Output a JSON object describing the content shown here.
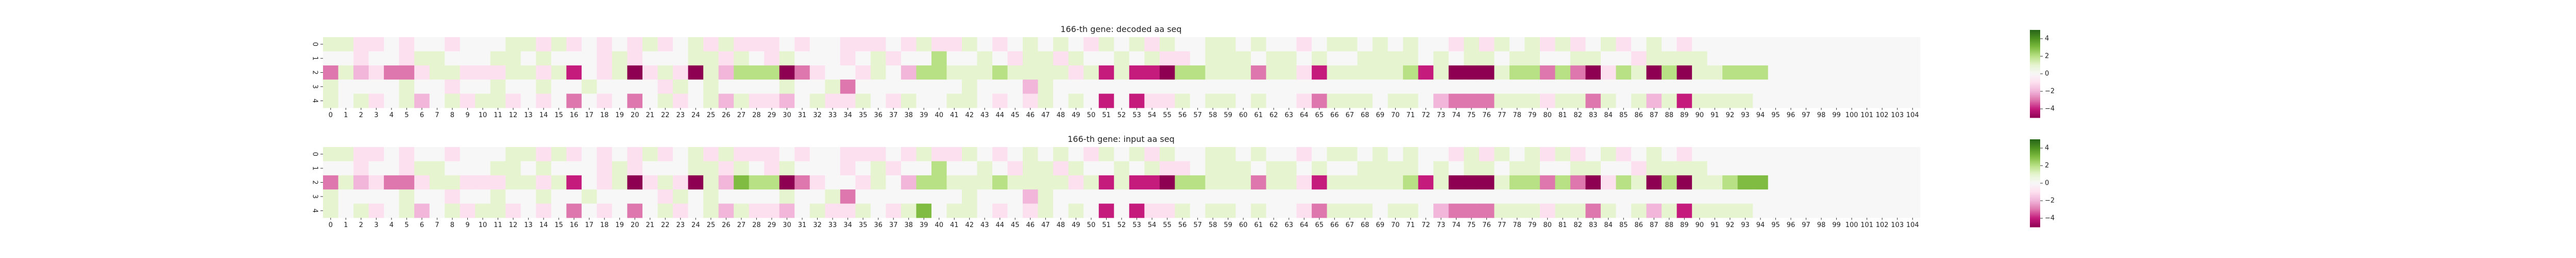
{
  "chart_data": [
    {
      "type": "heatmap",
      "title": "166-th gene: decoded aa seq",
      "n_cols": 105,
      "row_labels": [
        "0",
        "1",
        "2",
        "3",
        "4"
      ],
      "colorscale": "PiYG",
      "vmin": -5,
      "vmax": 5,
      "colorbar_ticks": [
        4,
        2,
        0,
        -2,
        -4
      ],
      "values": [
        [
          1,
          1,
          -1,
          -1,
          0,
          -1,
          0,
          0,
          -1,
          0,
          0,
          0,
          1,
          1,
          -1,
          1,
          -1,
          0,
          -1,
          0,
          -1,
          1,
          -1,
          0,
          1,
          -1,
          1,
          -1,
          -1,
          -1,
          0,
          -1,
          0,
          0,
          -1,
          -1,
          -1,
          0,
          -1,
          1,
          -1,
          -1,
          1,
          0,
          -1,
          0,
          1,
          0,
          1,
          0,
          -1,
          1,
          0,
          1,
          -1,
          1,
          0,
          0,
          1,
          1,
          0,
          1,
          0,
          0,
          -1,
          0,
          1,
          1,
          0,
          1,
          0,
          1,
          0,
          0,
          -1,
          1,
          -1,
          1,
          0,
          1,
          -1,
          1,
          -1,
          0,
          1,
          -1,
          0,
          1,
          0,
          -1,
          0,
          0,
          0,
          0,
          0,
          0,
          0,
          0,
          0,
          0,
          0,
          0,
          0,
          0,
          0
        ],
        [
          0,
          0,
          -1,
          0,
          0,
          -1,
          1,
          1,
          0,
          0,
          0,
          1,
          1,
          0,
          1,
          0,
          0,
          0,
          -1,
          1,
          -1,
          0,
          0,
          0,
          1,
          1,
          -1,
          1,
          0,
          -1,
          1,
          0,
          0,
          0,
          -1,
          0,
          1,
          -1,
          0,
          0,
          2,
          0,
          0,
          1,
          0,
          -1,
          1,
          1,
          -1,
          1,
          0,
          0,
          1,
          0,
          1,
          -1,
          -1,
          0,
          1,
          1,
          1,
          0,
          1,
          1,
          0,
          1,
          0,
          0,
          1,
          1,
          1,
          1,
          0,
          1,
          0,
          1,
          1,
          0,
          1,
          1,
          0,
          0,
          1,
          1,
          0,
          0,
          -1,
          1,
          1,
          1,
          1,
          0,
          0,
          0,
          0,
          0,
          0,
          0,
          0,
          0,
          0,
          0,
          0,
          0,
          0
        ],
        [
          -3,
          1,
          -2,
          -1,
          -3,
          -3,
          -1,
          1,
          1,
          -1,
          -1,
          -1,
          1,
          1,
          -1,
          1,
          -4,
          0,
          -1,
          1,
          -5,
          -1,
          1,
          -1,
          -5,
          1,
          -2,
          2,
          2,
          2,
          -5,
          -3,
          -1,
          0,
          0,
          -1,
          1,
          0,
          -2,
          2,
          2,
          1,
          1,
          1,
          2,
          1,
          1,
          1,
          1,
          -1,
          1,
          -4,
          1,
          -4,
          -4,
          -5,
          2,
          2,
          1,
          1,
          1,
          -3,
          1,
          1,
          -1,
          -4,
          1,
          1,
          1,
          1,
          1,
          2,
          -4,
          1,
          -5,
          -5,
          -5,
          1,
          2,
          2,
          -3,
          2,
          -3,
          -5,
          -1,
          2,
          1,
          -5,
          2,
          -5,
          1,
          1,
          2,
          2,
          2,
          0,
          0,
          0,
          0,
          0,
          0,
          0,
          0,
          0,
          0
        ],
        [
          1,
          0,
          0,
          0,
          0,
          1,
          0,
          0,
          -1,
          0,
          0,
          1,
          0,
          0,
          1,
          0,
          0,
          1,
          0,
          0,
          0,
          0,
          -1,
          1,
          0,
          1,
          0,
          0,
          0,
          0,
          1,
          0,
          0,
          1,
          -3,
          0,
          0,
          0,
          0,
          0,
          0,
          0,
          1,
          0,
          0,
          0,
          -2,
          1,
          0,
          0,
          0,
          0,
          0,
          0,
          0,
          0,
          0,
          0,
          0,
          0,
          0,
          0,
          0,
          0,
          0,
          0,
          0,
          0,
          0,
          0,
          0,
          0,
          0,
          0,
          0,
          0,
          0,
          0,
          0,
          0,
          0,
          0,
          0,
          0,
          0,
          0,
          0,
          0,
          0,
          0,
          0,
          0,
          0,
          0,
          0,
          0,
          0,
          0,
          0,
          0,
          0,
          0,
          0,
          0,
          0
        ],
        [
          1,
          0,
          1,
          -1,
          0,
          1,
          -2,
          0,
          1,
          -1,
          1,
          1,
          -1,
          0,
          -1,
          0,
          -3,
          0,
          -1,
          0,
          -3,
          0,
          1,
          -1,
          0,
          1,
          -2,
          1,
          -1,
          -1,
          -2,
          0,
          1,
          -1,
          -1,
          1,
          0,
          -1,
          1,
          0,
          0,
          1,
          1,
          0,
          -1,
          0,
          -1,
          1,
          0,
          1,
          0,
          -4,
          0,
          -4,
          -1,
          -1,
          1,
          0,
          1,
          1,
          0,
          1,
          0,
          0,
          -1,
          -3,
          1,
          1,
          1,
          0,
          1,
          1,
          0,
          -2,
          -3,
          -3,
          -3,
          1,
          1,
          1,
          -1,
          1,
          1,
          -3,
          1,
          0,
          1,
          -2,
          1,
          -4,
          1,
          1,
          1,
          1,
          0,
          0,
          0,
          0,
          0,
          0,
          0,
          0,
          0,
          0,
          0
        ]
      ]
    },
    {
      "type": "heatmap",
      "title": "166-th gene: input aa seq",
      "n_cols": 105,
      "row_labels": [
        "0",
        "1",
        "2",
        "3",
        "4"
      ],
      "colorscale": "PiYG",
      "vmin": -5,
      "vmax": 5,
      "colorbar_ticks": [
        4,
        2,
        0,
        -2,
        -4
      ],
      "values": [
        [
          1,
          1,
          -1,
          -1,
          0,
          -1,
          0,
          0,
          -1,
          0,
          0,
          0,
          1,
          1,
          -1,
          1,
          -1,
          0,
          -1,
          0,
          -1,
          1,
          -1,
          0,
          1,
          -1,
          1,
          -1,
          -1,
          -1,
          0,
          -1,
          0,
          0,
          -1,
          -1,
          -1,
          0,
          -1,
          1,
          -1,
          -1,
          1,
          0,
          -1,
          0,
          1,
          0,
          1,
          0,
          -1,
          1,
          0,
          1,
          -1,
          1,
          0,
          0,
          1,
          1,
          0,
          1,
          0,
          0,
          -1,
          0,
          1,
          1,
          0,
          1,
          0,
          1,
          0,
          0,
          -1,
          1,
          -1,
          1,
          0,
          1,
          -1,
          1,
          -1,
          0,
          1,
          -1,
          0,
          1,
          0,
          -1,
          0,
          0,
          0,
          0,
          0,
          0,
          0,
          0,
          0,
          0,
          0,
          0,
          0,
          0,
          0
        ],
        [
          0,
          0,
          -1,
          0,
          0,
          -1,
          1,
          1,
          0,
          0,
          0,
          1,
          1,
          0,
          1,
          0,
          0,
          0,
          -1,
          1,
          -1,
          0,
          0,
          0,
          1,
          1,
          -1,
          1,
          0,
          -1,
          1,
          0,
          0,
          0,
          -1,
          0,
          1,
          -1,
          0,
          0,
          2,
          0,
          0,
          1,
          0,
          -1,
          1,
          1,
          -1,
          1,
          0,
          0,
          1,
          0,
          1,
          -1,
          -1,
          0,
          1,
          1,
          1,
          0,
          1,
          1,
          0,
          1,
          0,
          0,
          1,
          1,
          1,
          1,
          0,
          1,
          0,
          1,
          1,
          0,
          1,
          1,
          0,
          0,
          1,
          1,
          0,
          0,
          -1,
          1,
          1,
          1,
          1,
          0,
          0,
          0,
          0,
          0,
          0,
          0,
          0,
          0,
          0,
          0,
          0,
          0,
          0
        ],
        [
          -3,
          1,
          -2,
          -1,
          -3,
          -3,
          -1,
          1,
          1,
          -1,
          -1,
          -1,
          1,
          1,
          -1,
          1,
          -4,
          0,
          -1,
          1,
          -5,
          -1,
          1,
          -1,
          -5,
          1,
          -2,
          3,
          2,
          2,
          -5,
          -3,
          -1,
          0,
          0,
          -1,
          1,
          0,
          -2,
          2,
          2,
          1,
          1,
          1,
          2,
          1,
          1,
          1,
          1,
          -1,
          1,
          -4,
          1,
          -4,
          -4,
          -5,
          2,
          2,
          1,
          1,
          1,
          -3,
          1,
          1,
          -1,
          -4,
          1,
          1,
          1,
          1,
          1,
          2,
          -4,
          1,
          -5,
          -5,
          -5,
          1,
          2,
          2,
          -3,
          2,
          -3,
          -5,
          -1,
          2,
          1,
          -5,
          2,
          -5,
          1,
          1,
          2,
          3,
          3,
          0,
          0,
          0,
          0,
          0,
          0,
          0,
          0,
          0,
          0
        ],
        [
          1,
          0,
          0,
          0,
          0,
          1,
          0,
          0,
          -1,
          0,
          0,
          1,
          0,
          0,
          1,
          0,
          0,
          1,
          0,
          0,
          0,
          0,
          -1,
          1,
          0,
          1,
          0,
          0,
          0,
          0,
          1,
          0,
          0,
          1,
          -3,
          0,
          0,
          0,
          0,
          0,
          0,
          0,
          1,
          0,
          0,
          0,
          -2,
          1,
          0,
          0,
          0,
          0,
          0,
          0,
          0,
          0,
          0,
          0,
          0,
          0,
          0,
          0,
          0,
          0,
          0,
          0,
          0,
          0,
          0,
          0,
          0,
          0,
          0,
          0,
          0,
          0,
          0,
          0,
          0,
          0,
          0,
          0,
          0,
          0,
          0,
          0,
          0,
          0,
          0,
          0,
          0,
          0,
          0,
          0,
          0,
          0,
          0,
          0,
          0,
          0,
          0,
          0,
          0,
          0,
          0
        ],
        [
          1,
          0,
          1,
          -1,
          0,
          1,
          -2,
          0,
          1,
          -1,
          1,
          1,
          -1,
          0,
          -1,
          0,
          -3,
          0,
          -1,
          0,
          -3,
          0,
          1,
          -1,
          0,
          1,
          -2,
          1,
          -1,
          -1,
          -2,
          0,
          1,
          -1,
          -1,
          1,
          0,
          -1,
          1,
          3,
          0,
          1,
          1,
          0,
          -1,
          0,
          -1,
          1,
          0,
          1,
          0,
          -4,
          0,
          -4,
          -1,
          -1,
          1,
          0,
          1,
          1,
          0,
          1,
          0,
          0,
          -1,
          -3,
          1,
          1,
          1,
          0,
          1,
          1,
          0,
          -2,
          -3,
          -3,
          -3,
          1,
          1,
          1,
          -1,
          1,
          1,
          -3,
          1,
          0,
          1,
          -2,
          1,
          -4,
          1,
          1,
          1,
          1,
          0,
          0,
          0,
          0,
          0,
          0,
          0,
          0,
          0,
          0,
          0
        ]
      ]
    }
  ]
}
